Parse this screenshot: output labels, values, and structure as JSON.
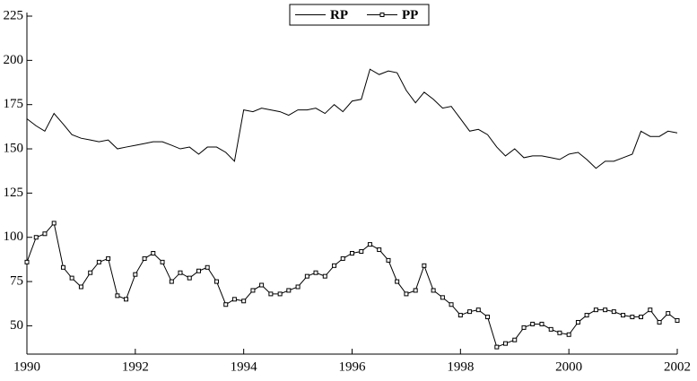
{
  "chart_data": {
    "type": "line",
    "x": [
      1990,
      1990.17,
      1990.33,
      1990.5,
      1990.67,
      1990.83,
      1991,
      1991.17,
      1991.33,
      1991.5,
      1991.67,
      1991.83,
      1992,
      1992.17,
      1992.33,
      1992.5,
      1992.67,
      1992.83,
      1993,
      1993.17,
      1993.33,
      1993.5,
      1993.67,
      1993.83,
      1994,
      1994.17,
      1994.33,
      1994.5,
      1994.67,
      1994.83,
      1995,
      1995.17,
      1995.33,
      1995.5,
      1995.67,
      1995.83,
      1996,
      1996.17,
      1996.33,
      1996.5,
      1996.67,
      1996.83,
      1997,
      1997.17,
      1997.33,
      1997.5,
      1997.67,
      1997.83,
      1998,
      1998.17,
      1998.33,
      1998.5,
      1998.67,
      1998.83,
      1999,
      1999.17,
      1999.33,
      1999.5,
      1999.67,
      1999.83,
      2000,
      2000.17,
      2000.33,
      2000.5,
      2000.67,
      2000.83,
      2001,
      2001.17,
      2001.33,
      2001.5,
      2001.67,
      2001.83,
      2002
    ],
    "series": [
      {
        "name": "RP",
        "color": "#000000",
        "values": [
          167,
          163,
          160,
          170,
          164,
          158,
          156,
          155,
          154,
          155,
          150,
          151,
          152,
          153,
          154,
          154,
          152,
          150,
          151,
          147,
          151,
          151,
          148,
          143,
          172,
          171,
          173,
          172,
          171,
          169,
          172,
          172,
          173,
          170,
          175,
          171,
          177,
          178,
          195,
          192,
          194,
          193,
          183,
          176,
          182,
          178,
          173,
          174,
          167,
          160,
          161,
          158,
          151,
          146,
          150,
          145,
          146,
          146,
          145,
          144,
          147,
          148,
          144,
          139,
          143,
          143,
          145,
          147,
          160,
          157,
          157,
          160,
          159
        ]
      },
      {
        "name": "PP",
        "color": "#000000",
        "marker": "square",
        "values": [
          86,
          100,
          102,
          108,
          83,
          77,
          72,
          80,
          86,
          88,
          67,
          65,
          79,
          88,
          91,
          86,
          75,
          80,
          77,
          81,
          83,
          75,
          62,
          65,
          64,
          70,
          73,
          68,
          68,
          70,
          72,
          78,
          80,
          78,
          84,
          88,
          91,
          92,
          96,
          93,
          87,
          75,
          68,
          70,
          84,
          70,
          66,
          62,
          56,
          58,
          59,
          55,
          38,
          40,
          42,
          49,
          51,
          51,
          48,
          46,
          45,
          52,
          56,
          59,
          59,
          58,
          56,
          55,
          55,
          59,
          52,
          57,
          53
        ]
      }
    ],
    "xlim": [
      1990,
      2002
    ],
    "xticks": [
      1990,
      1992,
      1994,
      1996,
      1998,
      2000,
      2002
    ],
    "ylim": [
      34,
      225
    ],
    "yticks": [
      50,
      75,
      100,
      125,
      150,
      175,
      200,
      225
    ],
    "legend": "top"
  }
}
